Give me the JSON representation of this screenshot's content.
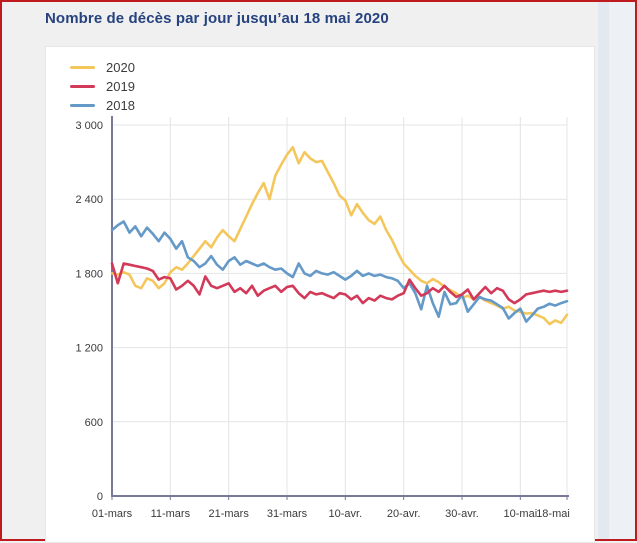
{
  "page": {
    "title": "Nombre de décès par jour jusqu’au 18 mai 2020"
  },
  "chart_data": {
    "type": "line",
    "title": "Nombre de décès par jour jusqu’au 18 mai 2020",
    "xlabel": "",
    "ylabel": "",
    "ylim": [
      0,
      3000
    ],
    "grid": true,
    "legend_position": "top-left",
    "x_unit": "day",
    "x_start": "01-mars",
    "x_end": "18-mai",
    "x_ticks": [
      {
        "day": 0,
        "label": "01-mars"
      },
      {
        "day": 10,
        "label": "11-mars"
      },
      {
        "day": 20,
        "label": "21-mars"
      },
      {
        "day": 30,
        "label": "31-mars"
      },
      {
        "day": 40,
        "label": "10-avr."
      },
      {
        "day": 50,
        "label": "20-avr."
      },
      {
        "day": 60,
        "label": "30-avr."
      },
      {
        "day": 70,
        "label": "10-mai"
      },
      {
        "day": 78,
        "label": "18-mai"
      }
    ],
    "y_ticks": [
      0,
      600,
      1200,
      1800,
      2400,
      3000
    ],
    "y_tick_labels": [
      "0",
      "600",
      "1 200",
      "1 800",
      "2 400",
      "3 000"
    ],
    "series": [
      {
        "name": "2020",
        "color": "#F4C75D",
        "values": [
          1800,
          1790,
          1810,
          1790,
          1700,
          1680,
          1760,
          1740,
          1680,
          1720,
          1810,
          1850,
          1830,
          1880,
          1940,
          2000,
          2060,
          2010,
          2090,
          2150,
          2100,
          2060,
          2160,
          2260,
          2360,
          2450,
          2530,
          2400,
          2590,
          2680,
          2760,
          2820,
          2690,
          2780,
          2730,
          2700,
          2710,
          2620,
          2530,
          2430,
          2390,
          2270,
          2360,
          2290,
          2230,
          2200,
          2260,
          2150,
          2070,
          1970,
          1880,
          1830,
          1780,
          1740,
          1720,
          1755,
          1730,
          1690,
          1665,
          1640,
          1600,
          1620,
          1590,
          1610,
          1580,
          1560,
          1540,
          1515,
          1530,
          1500,
          1490,
          1475,
          1480,
          1460,
          1440,
          1390,
          1420,
          1400,
          1465
        ]
      },
      {
        "name": "2019",
        "color": "#D33958",
        "values": [
          1880,
          1720,
          1880,
          1870,
          1860,
          1850,
          1840,
          1820,
          1750,
          1770,
          1760,
          1670,
          1700,
          1740,
          1700,
          1630,
          1775,
          1700,
          1680,
          1700,
          1720,
          1650,
          1680,
          1640,
          1700,
          1620,
          1660,
          1680,
          1700,
          1650,
          1690,
          1700,
          1640,
          1600,
          1650,
          1630,
          1640,
          1620,
          1600,
          1640,
          1630,
          1590,
          1620,
          1560,
          1600,
          1580,
          1620,
          1600,
          1590,
          1620,
          1640,
          1750,
          1680,
          1620,
          1640,
          1680,
          1650,
          1700,
          1650,
          1610,
          1630,
          1670,
          1590,
          1640,
          1690,
          1640,
          1680,
          1660,
          1590,
          1560,
          1590,
          1630,
          1640,
          1650,
          1660,
          1650,
          1660,
          1650,
          1660
        ]
      },
      {
        "name": "2018",
        "color": "#6499C8",
        "values": [
          2150,
          2190,
          2220,
          2130,
          2180,
          2100,
          2170,
          2120,
          2060,
          2130,
          2080,
          2000,
          2060,
          1930,
          1900,
          1850,
          1880,
          1940,
          1870,
          1830,
          1900,
          1930,
          1870,
          1900,
          1880,
          1860,
          1880,
          1850,
          1830,
          1840,
          1800,
          1770,
          1880,
          1800,
          1780,
          1820,
          1800,
          1790,
          1810,
          1780,
          1750,
          1780,
          1820,
          1780,
          1800,
          1780,
          1790,
          1770,
          1760,
          1740,
          1680,
          1720,
          1640,
          1510,
          1700,
          1560,
          1450,
          1650,
          1550,
          1560,
          1630,
          1490,
          1550,
          1610,
          1590,
          1580,
          1550,
          1520,
          1435,
          1480,
          1515,
          1410,
          1460,
          1515,
          1530,
          1555,
          1540,
          1560,
          1575
        ]
      }
    ],
    "style": {
      "axis_color": "#78789B",
      "gridline_color": "#E4E4E4",
      "panel_background": "#FFFFFF",
      "page_background": "#F0F0F1",
      "border_color": "#BF1B1E",
      "title_color": "#26437F"
    }
  }
}
